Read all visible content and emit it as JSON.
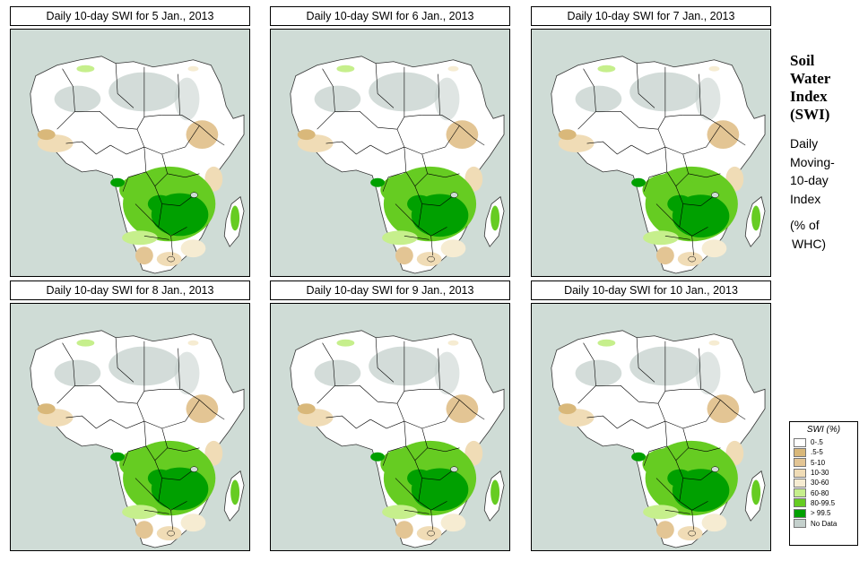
{
  "panels": [
    {
      "title": "Daily 10-day SWI for  5 Jan., 2013"
    },
    {
      "title": "Daily 10-day SWI for  6 Jan., 2013"
    },
    {
      "title": "Daily 10-day SWI for  7 Jan., 2013"
    },
    {
      "title": "Daily 10-day SWI for  8 Jan., 2013"
    },
    {
      "title": "Daily 10-day SWI for  9 Jan., 2013"
    },
    {
      "title": "Daily 10-day SWI for  10 Jan., 2013"
    }
  ],
  "side": {
    "title_lines": [
      "Soil",
      "Water",
      "Index",
      "(SWI)"
    ],
    "sub_lines": [
      "Daily",
      "Moving-",
      "10-day",
      "Index"
    ],
    "unit_lines": [
      "(% of",
      "WHC)"
    ]
  },
  "legend": {
    "title": "SWI (%)",
    "items": [
      {
        "label": "0-.5",
        "color": "#ffffff"
      },
      {
        "label": ".5-5",
        "color": "#d9b87a"
      },
      {
        "label": "5-10",
        "color": "#e3c594"
      },
      {
        "label": "10-30",
        "color": "#f0dcb6"
      },
      {
        "label": "30-60",
        "color": "#f6ecd2"
      },
      {
        "label": "60-80",
        "color": "#c6ef8c"
      },
      {
        "label": "80-99.5",
        "color": "#66cc22"
      },
      {
        "label": "> 99.5",
        "color": "#00a000"
      },
      {
        "label": "No Data",
        "color": "#c4d0cc"
      }
    ]
  },
  "colors": {
    "ocean": "#cfdcd6",
    "land": "#ffffff",
    "border": "#000000"
  }
}
